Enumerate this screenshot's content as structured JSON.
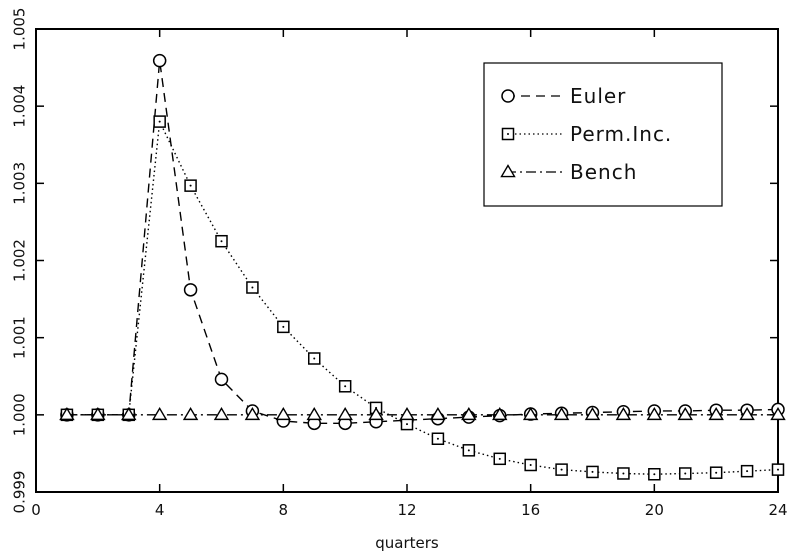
{
  "chart_data": {
    "type": "line",
    "title": "",
    "xlabel": "quarters",
    "ylabel": "",
    "xlim": [
      0,
      24
    ],
    "ylim": [
      0.999,
      1.005
    ],
    "x_ticks": [
      {
        "value": 0,
        "label": "0"
      },
      {
        "value": 4,
        "label": "4"
      },
      {
        "value": 8,
        "label": "8"
      },
      {
        "value": 12,
        "label": "12"
      },
      {
        "value": 16,
        "label": "16"
      },
      {
        "value": 20,
        "label": "20"
      },
      {
        "value": 24,
        "label": "24"
      }
    ],
    "y_ticks": [
      {
        "value": 0.999,
        "label": "0.999"
      },
      {
        "value": 1.0,
        "label": "1.000"
      },
      {
        "value": 1.001,
        "label": "1.001"
      },
      {
        "value": 1.002,
        "label": "1.002"
      },
      {
        "value": 1.003,
        "label": "1.003"
      },
      {
        "value": 1.004,
        "label": "1.004"
      },
      {
        "value": 1.005,
        "label": "1.005"
      }
    ],
    "grid": false,
    "legend_position": "top-right",
    "x": [
      1,
      2,
      3,
      4,
      5,
      6,
      7,
      8,
      9,
      10,
      11,
      12,
      13,
      14,
      15,
      16,
      17,
      18,
      19,
      20,
      21,
      22,
      23,
      24
    ],
    "series": [
      {
        "name": "Euler",
        "marker": "circle",
        "dash": "dashed",
        "values": [
          1.0,
          1.0,
          1.0,
          1.00459,
          1.00162,
          1.00046,
          1.00005,
          0.99992,
          0.99989,
          0.99989,
          0.99991,
          0.99993,
          0.99995,
          0.99997,
          0.99999,
          1.00001,
          1.00002,
          1.00003,
          1.00004,
          1.00005,
          1.00005,
          1.00006,
          1.00006,
          1.00007
        ]
      },
      {
        "name": "Perm.Inc.",
        "marker": "square",
        "dash": "dotted",
        "values": [
          1.0,
          1.0,
          1.0,
          1.0038,
          1.00297,
          1.00225,
          1.00165,
          1.00114,
          1.00073,
          1.00037,
          1.00009,
          0.99988,
          0.99969,
          0.99954,
          0.99943,
          0.99935,
          0.99929,
          0.99926,
          0.99924,
          0.99923,
          0.99924,
          0.99925,
          0.99927,
          0.99929
        ]
      },
      {
        "name": "Bench",
        "marker": "triangle",
        "dash": "dashdot",
        "values": [
          1.0,
          1.0,
          1.0,
          1.0,
          1.0,
          1.0,
          1.0,
          1.0,
          1.0,
          1.0,
          1.0,
          1.0,
          1.0,
          1.0,
          1.0,
          1.0,
          1.0,
          1.0,
          1.0,
          1.0,
          1.0,
          1.0,
          1.0,
          1.0
        ]
      }
    ]
  }
}
